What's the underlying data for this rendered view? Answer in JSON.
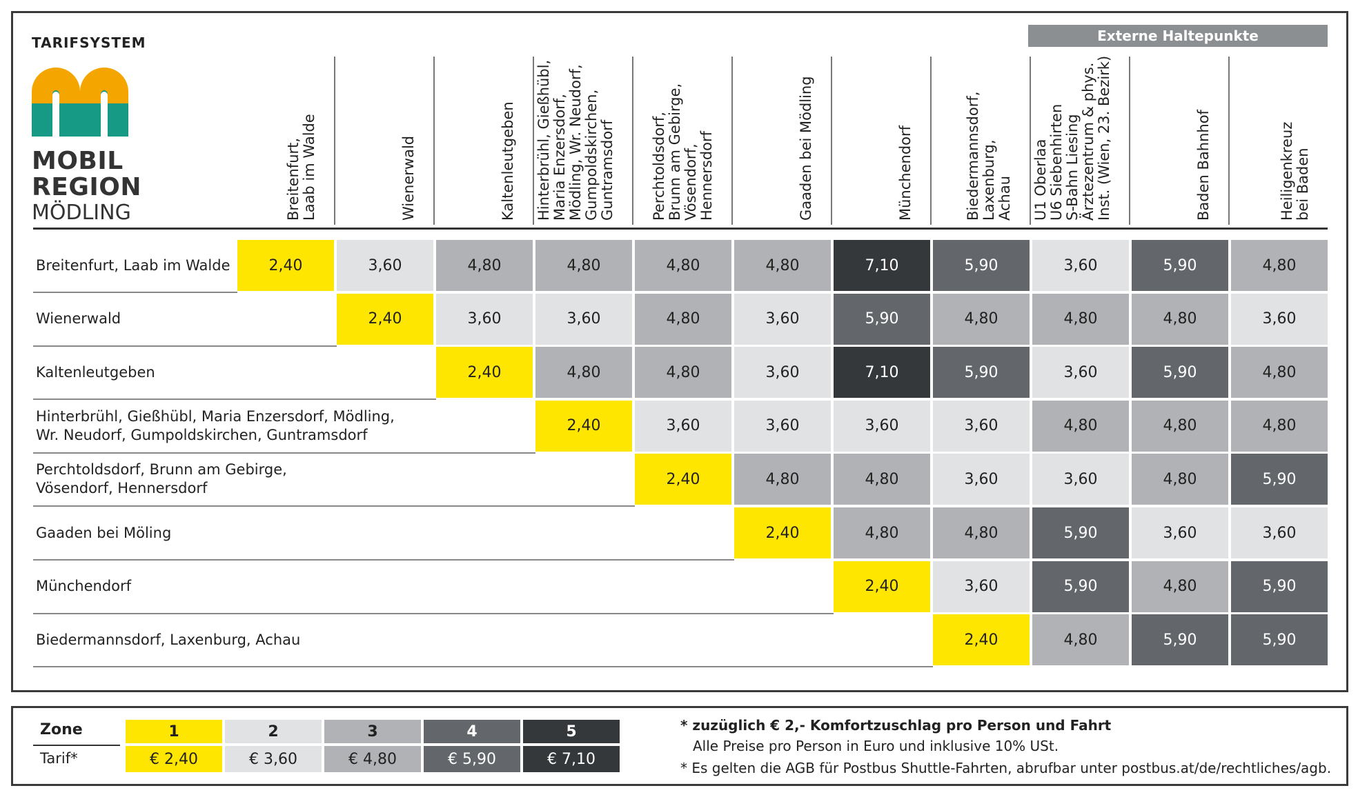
{
  "logo": {
    "title": "TARIFSYSTEM",
    "word1": "MOBIL",
    "word2": "REGION",
    "word3": "MÖDLING",
    "colors": {
      "orange": "#f5a500",
      "teal": "#169a86"
    }
  },
  "external_label": "Externe Haltepunkte",
  "columns": [
    [
      "Breitenfurt,",
      "Laab im Walde"
    ],
    [
      "Wienerwald"
    ],
    [
      "Kaltenleutgeben"
    ],
    [
      "Hinterbrühl, Gießhübl,",
      "Maria Enzersdorf,",
      "Mödling, Wr. Neudorf,",
      "Gumpoldskirchen,",
      "Guntramsdorf"
    ],
    [
      "Perchtoldsdorf,",
      "Brunn am Gebirge,",
      "Vösendorf,",
      "Hennersdorf"
    ],
    [
      "Gaaden bei Mödling"
    ],
    [
      "Münchendorf"
    ],
    [
      "Biedermannsdorf,",
      "Laxenburg,",
      "Achau"
    ],
    [
      "U1 Oberlaa",
      "U6 Siebenhirten",
      "S-Bahn Liesing",
      "Ärztezentrum & phys.",
      "Inst. (Wien, 23. Bezirk)"
    ],
    [
      "Baden Bahnhof"
    ],
    [
      "Heiligenkreuz",
      "bei Baden"
    ]
  ],
  "rows": [
    {
      "label": [
        "Breitenfurt, Laab im Walde"
      ],
      "start": 0,
      "cells": [
        [
          "2,40",
          1
        ],
        [
          "3,60",
          2
        ],
        [
          "4,80",
          3
        ],
        [
          "4,80",
          3
        ],
        [
          "4,80",
          3
        ],
        [
          "4,80",
          3
        ],
        [
          "7,10",
          5
        ],
        [
          "5,90",
          4
        ],
        [
          "3,60",
          2
        ],
        [
          "5,90",
          4
        ],
        [
          "4,80",
          3
        ]
      ]
    },
    {
      "label": [
        "Wienerwald"
      ],
      "start": 1,
      "cells": [
        [
          "2,40",
          1
        ],
        [
          "3,60",
          2
        ],
        [
          "3,60",
          2
        ],
        [
          "4,80",
          3
        ],
        [
          "3,60",
          2
        ],
        [
          "5,90",
          4
        ],
        [
          "4,80",
          3
        ],
        [
          "4,80",
          3
        ],
        [
          "4,80",
          3
        ],
        [
          "3,60",
          2
        ]
      ]
    },
    {
      "label": [
        "Kaltenleutgeben"
      ],
      "start": 2,
      "cells": [
        [
          "2,40",
          1
        ],
        [
          "4,80",
          3
        ],
        [
          "4,80",
          3
        ],
        [
          "3,60",
          2
        ],
        [
          "7,10",
          5
        ],
        [
          "5,90",
          4
        ],
        [
          "3,60",
          2
        ],
        [
          "5,90",
          4
        ],
        [
          "4,80",
          3
        ]
      ]
    },
    {
      "label": [
        "Hinterbrühl, Gießhübl, Maria Enzersdorf, Mödling,",
        "Wr. Neudorf, Gumpoldskirchen, Guntramsdorf"
      ],
      "start": 3,
      "cells": [
        [
          "2,40",
          1
        ],
        [
          "3,60",
          2
        ],
        [
          "3,60",
          2
        ],
        [
          "3,60",
          2
        ],
        [
          "3,60",
          2
        ],
        [
          "4,80",
          3
        ],
        [
          "4,80",
          3
        ],
        [
          "4,80",
          3
        ]
      ]
    },
    {
      "label": [
        "Perchtoldsdorf, Brunn am Gebirge,",
        "Vösendorf, Hennersdorf"
      ],
      "start": 4,
      "cells": [
        [
          "2,40",
          1
        ],
        [
          "4,80",
          3
        ],
        [
          "4,80",
          3
        ],
        [
          "3,60",
          2
        ],
        [
          "3,60",
          2
        ],
        [
          "4,80",
          3
        ],
        [
          "5,90",
          4
        ]
      ]
    },
    {
      "label": [
        "Gaaden bei Möling"
      ],
      "start": 5,
      "cells": [
        [
          "2,40",
          1
        ],
        [
          "4,80",
          3
        ],
        [
          "4,80",
          3
        ],
        [
          "5,90",
          4
        ],
        [
          "3,60",
          2
        ],
        [
          "3,60",
          2
        ]
      ]
    },
    {
      "label": [
        "Münchendorf"
      ],
      "start": 6,
      "cells": [
        [
          "2,40",
          1
        ],
        [
          "3,60",
          2
        ],
        [
          "5,90",
          4
        ],
        [
          "4,80",
          3
        ],
        [
          "5,90",
          4
        ]
      ]
    },
    {
      "label": [
        "Biedermannsdorf, Laxenburg, Achau"
      ],
      "start": 7,
      "cells": [
        [
          "2,40",
          1
        ],
        [
          "4,80",
          3
        ],
        [
          "5,90",
          4
        ],
        [
          "5,90",
          4
        ]
      ]
    }
  ],
  "legend": {
    "zone_label": "Zone",
    "tarif_label": "Tarif*",
    "zones": [
      {
        "zone": "1",
        "tarif": "€ 2,40"
      },
      {
        "zone": "2",
        "tarif": "€ 3,60"
      },
      {
        "zone": "3",
        "tarif": "€ 4,80"
      },
      {
        "zone": "4",
        "tarif": "€ 5,90"
      },
      {
        "zone": "5",
        "tarif": "€ 7,10"
      }
    ],
    "zone_colors": {
      "1": "#ffe600",
      "2": "#e1e2e4",
      "3": "#b0b2b5",
      "4": "#63676b",
      "5": "#35383b"
    }
  },
  "notes": {
    "line1": "* zuzüglich € 2,- Komfortzuschlag pro Person und Fahrt",
    "line2": "Alle Preise pro Person in Euro und inklusive 10% USt.",
    "line3": "* Es gelten die AGB für Postbus Shuttle-Fahrten, abrufbar unter postbus.at/de/rechtliches/agb."
  }
}
